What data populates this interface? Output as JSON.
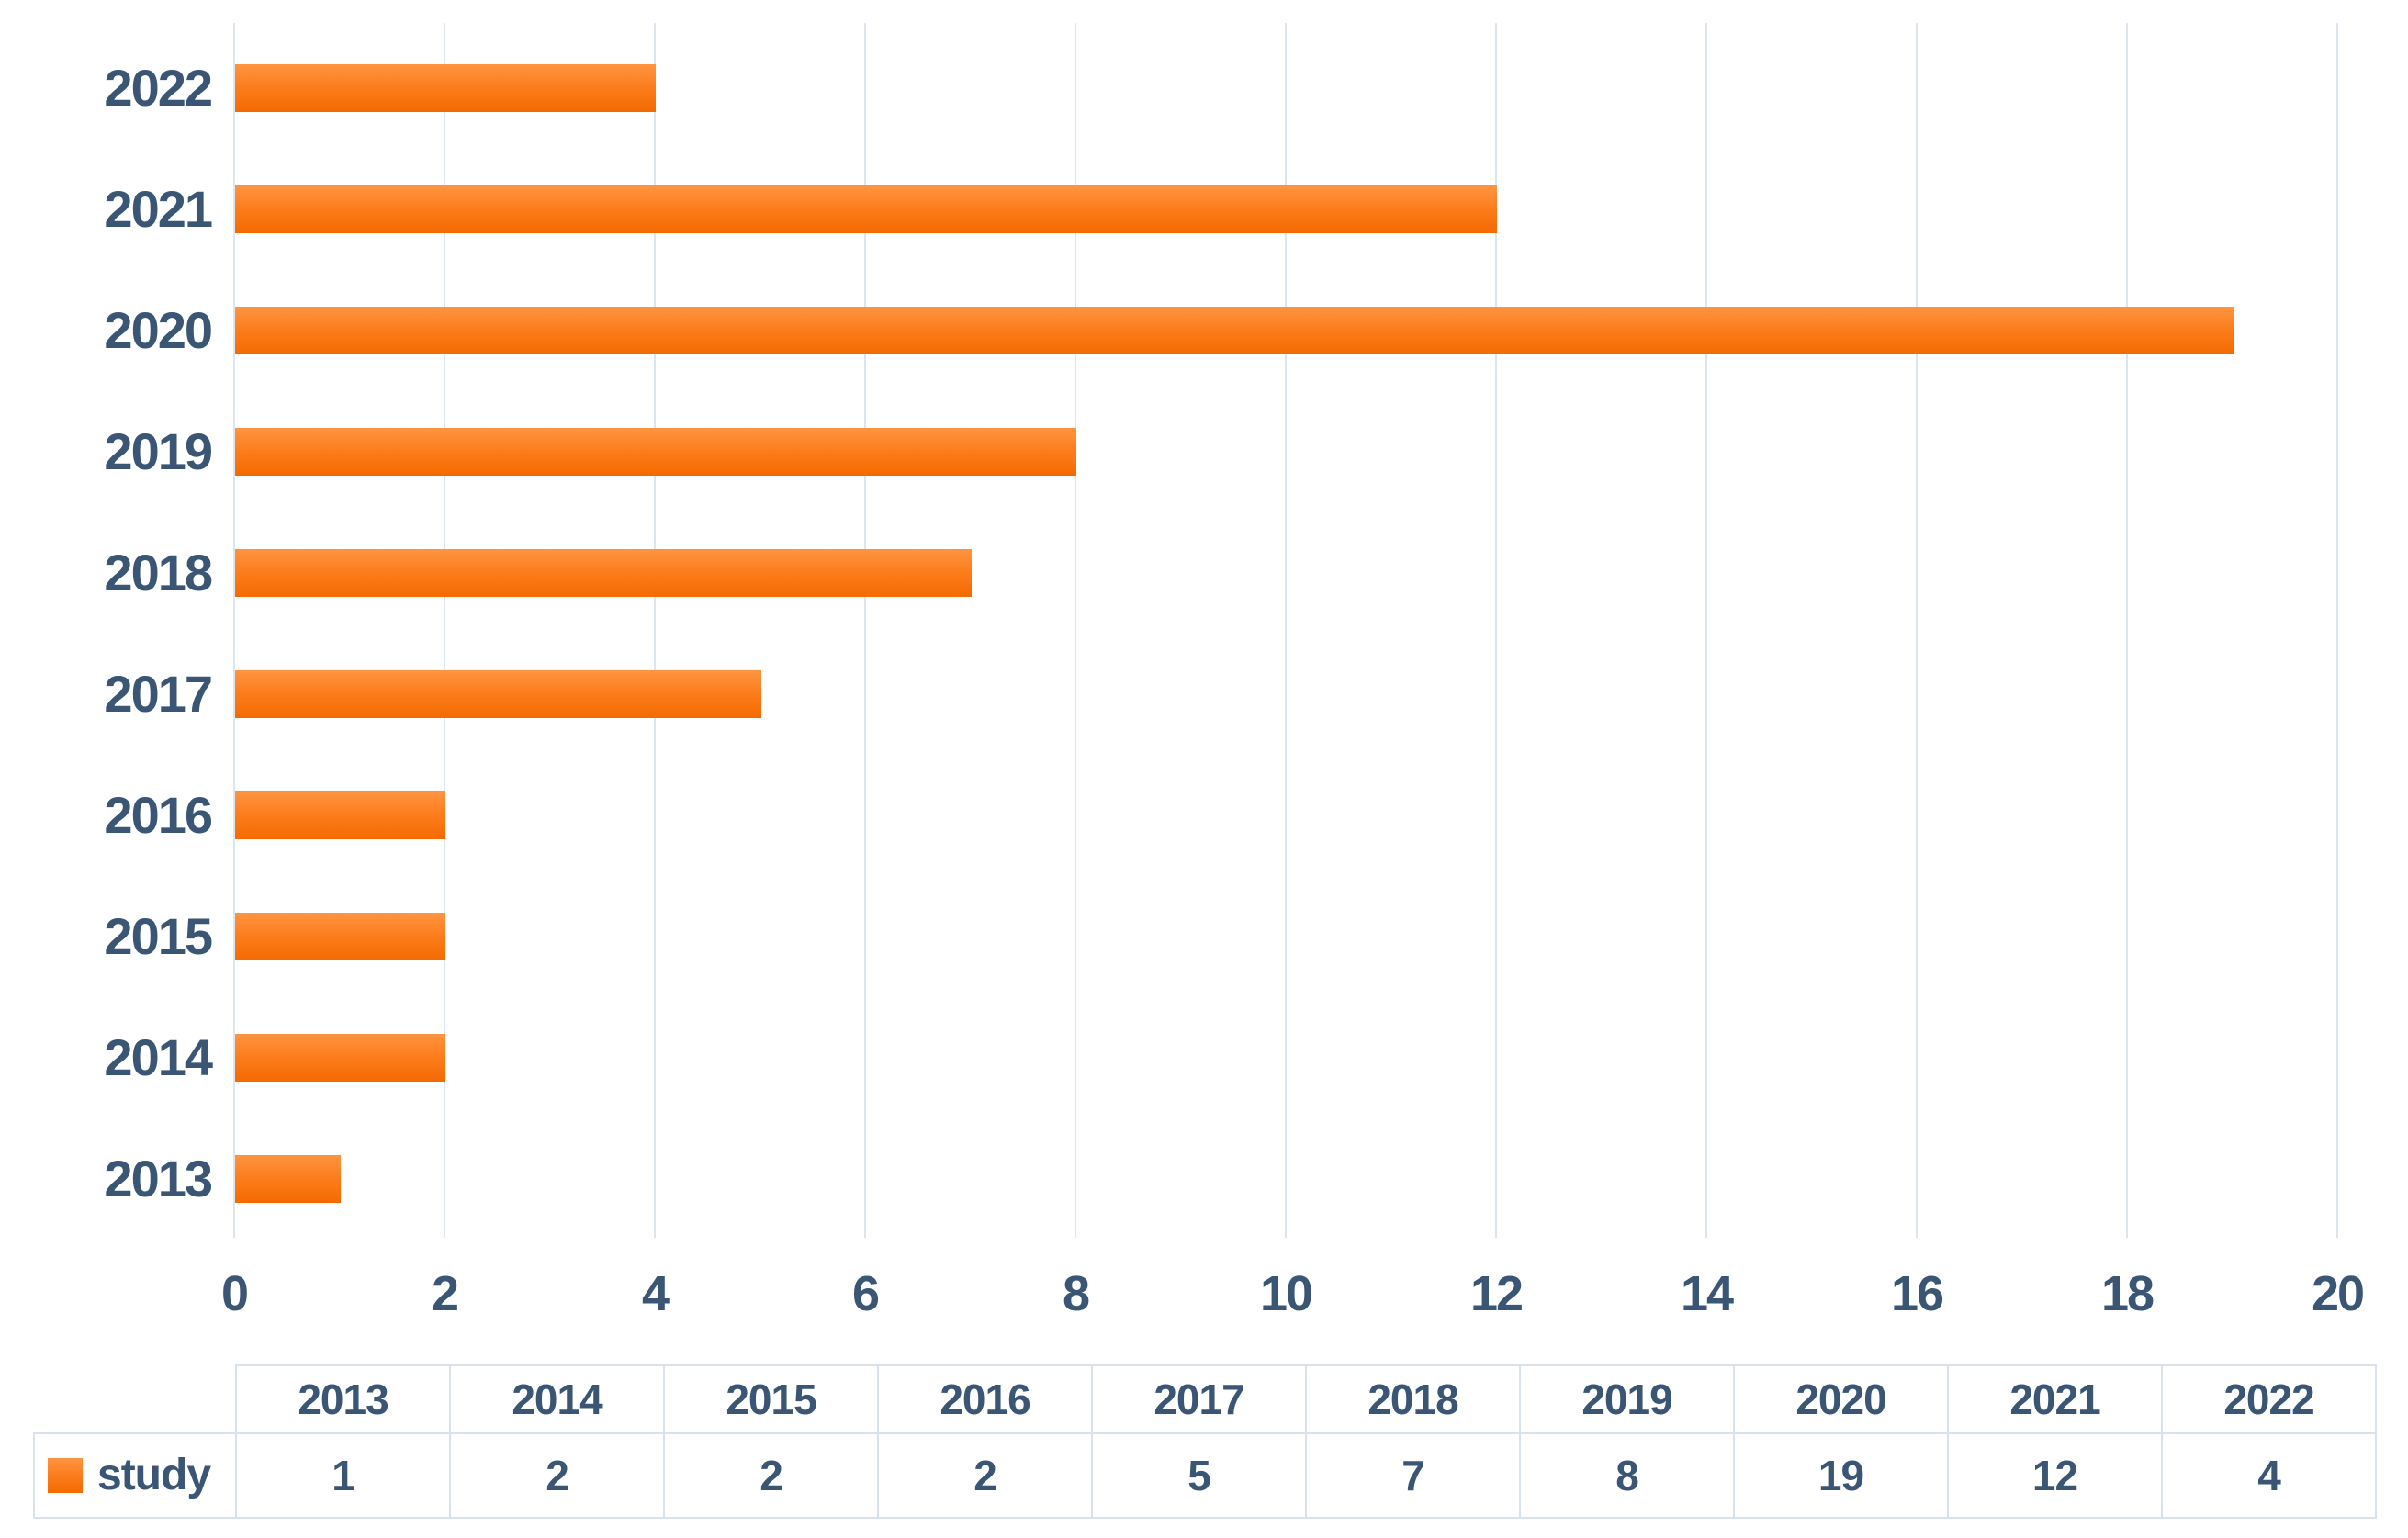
{
  "chart_data": {
    "type": "bar",
    "orientation": "horizontal",
    "title": "",
    "xlabel": "",
    "ylabel": "",
    "categories": [
      "2022",
      "2021",
      "2020",
      "2019",
      "2018",
      "2017",
      "2016",
      "2015",
      "2014",
      "2013"
    ],
    "series": [
      {
        "name": "study",
        "values": [
          4,
          12,
          19,
          8,
          7,
          5,
          2,
          2,
          2,
          1
        ]
      }
    ],
    "xlim": [
      0,
      20
    ],
    "x_ticks": [
      "0",
      "2",
      "4",
      "6",
      "8",
      "10",
      "12",
      "14",
      "16",
      "18",
      "20"
    ],
    "grid": "vertical-gridlines-on",
    "legend_position": "table-bottom-left",
    "colors": {
      "bar_top": "#ff9441",
      "bar_mid": "#fc7d1d",
      "bar_bottom": "#f46a00",
      "label_text": "#3a5674",
      "gridline": "#dde5ee",
      "table_border": "#d8e1ec"
    }
  },
  "data_table": {
    "columns": [
      "2013",
      "2014",
      "2015",
      "2016",
      "2017",
      "2018",
      "2019",
      "2020",
      "2021",
      "2022"
    ],
    "rows": [
      {
        "legend": "study",
        "values": [
          "1",
          "2",
          "2",
          "2",
          "5",
          "7",
          "8",
          "19",
          "12",
          "4"
        ]
      }
    ]
  }
}
